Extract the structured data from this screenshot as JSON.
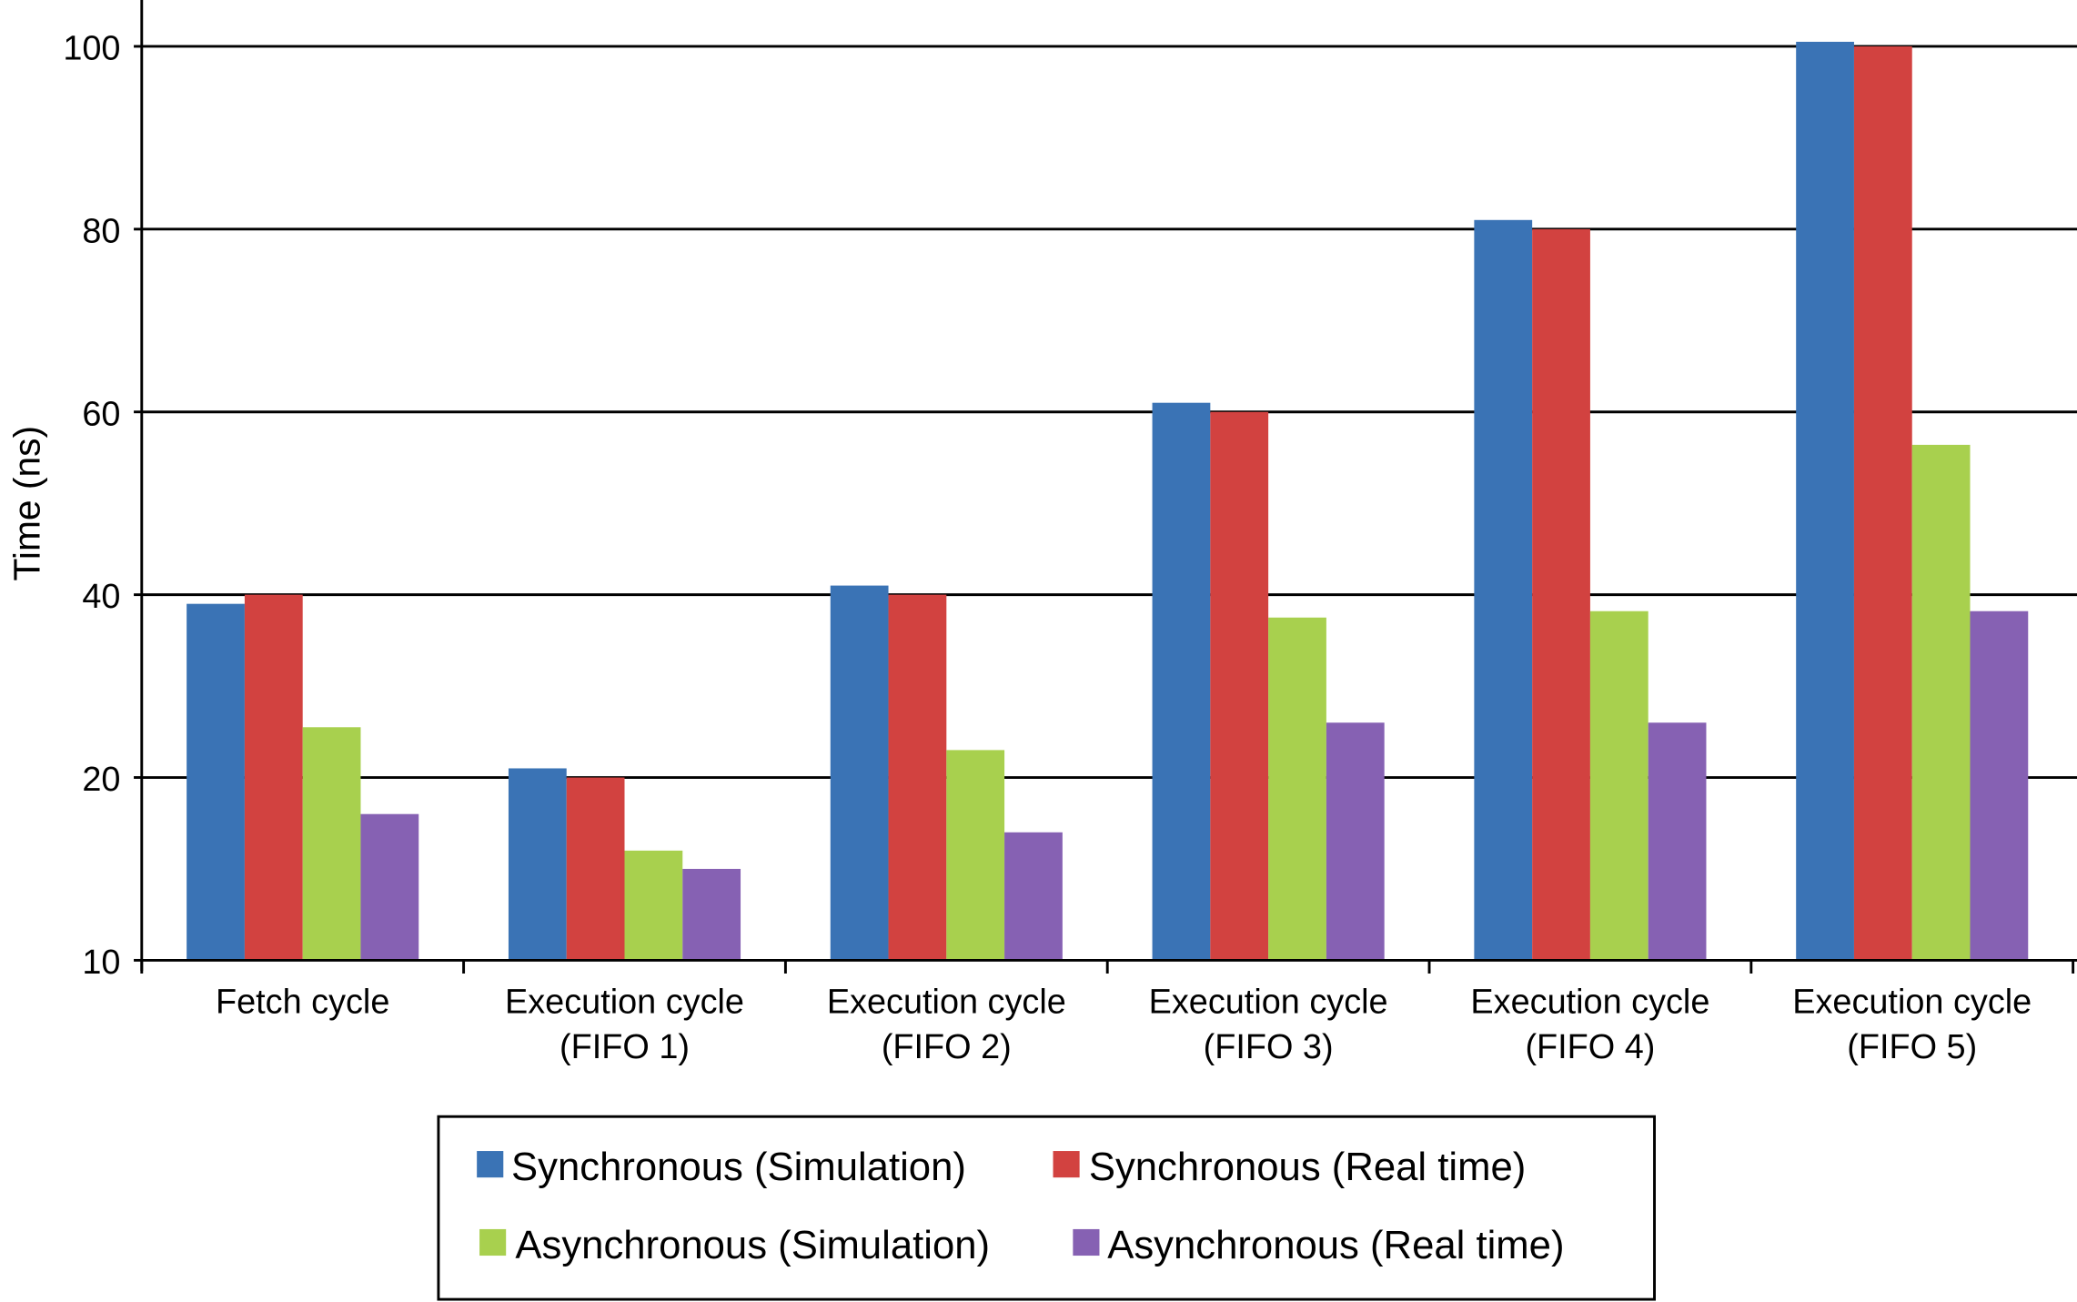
{
  "chart_data": {
    "type": "bar",
    "title": "",
    "xlabel": "",
    "ylabel": "Time (ns)",
    "y_ticks": [
      10,
      20,
      40,
      60,
      80,
      100
    ],
    "ylim": [
      10,
      100
    ],
    "grid": "horizontal",
    "legend_position": "bottom",
    "categories": [
      [
        "Fetch cycle",
        ""
      ],
      [
        "Execution cycle",
        "(FIFO 1)"
      ],
      [
        "Execution cycle",
        "(FIFO 2)"
      ],
      [
        "Execution cycle",
        "(FIFO 3)"
      ],
      [
        "Execution cycle",
        "(FIFO 4)"
      ],
      [
        "Execution cycle",
        "(FIFO 5)"
      ]
    ],
    "series": [
      {
        "name": "Synchronous (Simulation)",
        "color": "#3a73b5",
        "values": [
          39,
          21,
          41,
          61,
          81,
          100.5
        ]
      },
      {
        "name": "Synchronous (Real time)",
        "color": "#d24240",
        "values": [
          40,
          20,
          40,
          60,
          80,
          100
        ]
      },
      {
        "name": "Asynchronous (Simulation)",
        "color": "#a8d04e",
        "values": [
          25.5,
          16,
          23,
          37.5,
          38.2,
          56.4
        ]
      },
      {
        "name": "Asynchronous (Real time)",
        "color": "#8661b3",
        "values": [
          18,
          15,
          17,
          26,
          26,
          38.2
        ]
      }
    ]
  }
}
